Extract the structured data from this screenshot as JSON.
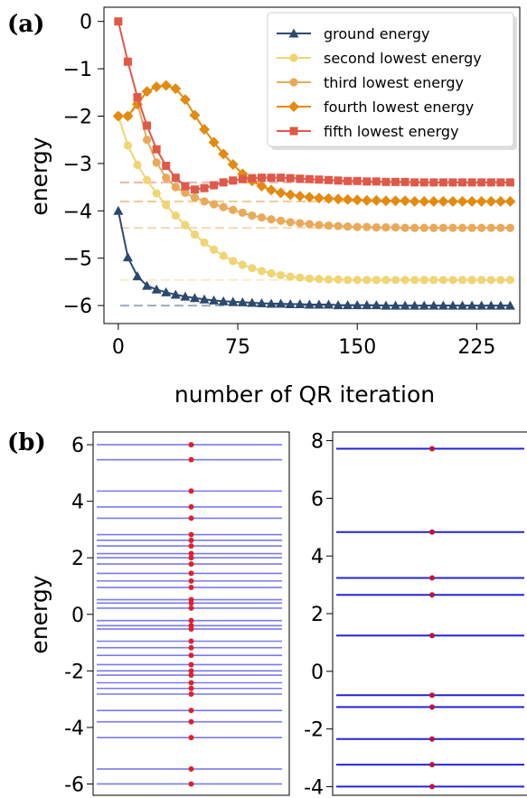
{
  "panel_labels": {
    "a": "(a)",
    "b": "(b)"
  },
  "chart_data": [
    {
      "type": "line",
      "panel": "(a)",
      "xlabel": "number of QR iteration",
      "ylabel": "energy",
      "xlim": [
        -9,
        252
      ],
      "ylim": [
        -6.38,
        0.3
      ],
      "xticks": [
        0,
        75,
        150,
        225
      ],
      "yticks": [
        0,
        -1,
        -2,
        -3,
        -4,
        -5,
        -6
      ],
      "legend_position": "top-right",
      "x": [
        0,
        6,
        12,
        18,
        24,
        30,
        36,
        42,
        48,
        54,
        60,
        66,
        72,
        78,
        84,
        90,
        96,
        102,
        108,
        114,
        120,
        126,
        132,
        138,
        144,
        150,
        156,
        162,
        168,
        174,
        180,
        186,
        192,
        198,
        204,
        210,
        216,
        222,
        228,
        234,
        240,
        246
      ],
      "series": [
        {
          "name": "ground energy",
          "color": "#2c4a6e",
          "marker": "triangle",
          "reference": -6.0,
          "values": [
            -4.0,
            -4.98,
            -5.38,
            -5.58,
            -5.66,
            -5.72,
            -5.77,
            -5.81,
            -5.84,
            -5.87,
            -5.89,
            -5.91,
            -5.92,
            -5.93,
            -5.94,
            -5.95,
            -5.96,
            -5.96,
            -5.97,
            -5.97,
            -5.98,
            -5.98,
            -5.98,
            -5.99,
            -5.99,
            -5.99,
            -5.99,
            -5.99,
            -6.0,
            -6.0,
            -6.0,
            -6.0,
            -6.0,
            -6.0,
            -6.0,
            -6.0,
            -6.0,
            -6.0,
            -6.0,
            -6.0,
            -6.0,
            -6.0
          ]
        },
        {
          "name": "second lowest energy",
          "color": "#efd574",
          "marker": "circle",
          "reference": -5.46,
          "values": [
            -2.0,
            -2.62,
            -3.03,
            -3.35,
            -3.63,
            -3.88,
            -4.1,
            -4.3,
            -4.5,
            -4.67,
            -4.82,
            -4.95,
            -5.06,
            -5.14,
            -5.21,
            -5.27,
            -5.32,
            -5.36,
            -5.39,
            -5.41,
            -5.43,
            -5.44,
            -5.45,
            -5.45,
            -5.46,
            -5.46,
            -5.46,
            -5.46,
            -5.46,
            -5.46,
            -5.46,
            -5.46,
            -5.46,
            -5.46,
            -5.46,
            -5.46,
            -5.46,
            -5.46,
            -5.46,
            -5.46,
            -5.46,
            -5.46
          ]
        },
        {
          "name": "third lowest energy",
          "color": "#e8aa5a",
          "marker": "circle",
          "reference": -4.36,
          "values": [
            -2.0,
            -2.0,
            -1.72,
            -2.5,
            -2.98,
            -3.3,
            -3.5,
            -3.62,
            -3.72,
            -3.8,
            -3.86,
            -3.92,
            -3.98,
            -4.04,
            -4.1,
            -4.14,
            -4.18,
            -4.21,
            -4.24,
            -4.26,
            -4.28,
            -4.3,
            -4.31,
            -4.32,
            -4.33,
            -4.34,
            -4.34,
            -4.35,
            -4.35,
            -4.35,
            -4.36,
            -4.36,
            -4.36,
            -4.36,
            -4.36,
            -4.36,
            -4.36,
            -4.36,
            -4.36,
            -4.36,
            -4.36,
            -4.36
          ]
        },
        {
          "name": "fourth lowest energy",
          "color": "#e38a12",
          "marker": "diamond",
          "reference": -3.8,
          "values": [
            -2.0,
            -2.0,
            -1.75,
            -1.48,
            -1.38,
            -1.35,
            -1.42,
            -1.65,
            -1.98,
            -2.28,
            -2.55,
            -2.8,
            -3.02,
            -3.22,
            -3.37,
            -3.48,
            -3.56,
            -3.62,
            -3.66,
            -3.69,
            -3.71,
            -3.73,
            -3.74,
            -3.75,
            -3.76,
            -3.77,
            -3.78,
            -3.78,
            -3.79,
            -3.79,
            -3.79,
            -3.8,
            -3.8,
            -3.8,
            -3.8,
            -3.8,
            -3.8,
            -3.8,
            -3.8,
            -3.8,
            -3.8,
            -3.8
          ]
        },
        {
          "name": "fifth lowest energy",
          "color": "#df5949",
          "marker": "square",
          "reference": -3.4,
          "values": [
            0.0,
            -0.85,
            -1.6,
            -2.2,
            -2.7,
            -3.05,
            -3.3,
            -3.48,
            -3.55,
            -3.52,
            -3.46,
            -3.4,
            -3.36,
            -3.33,
            -3.31,
            -3.3,
            -3.3,
            -3.3,
            -3.31,
            -3.32,
            -3.33,
            -3.34,
            -3.35,
            -3.36,
            -3.37,
            -3.37,
            -3.38,
            -3.38,
            -3.39,
            -3.39,
            -3.39,
            -3.4,
            -3.4,
            -3.4,
            -3.4,
            -3.4,
            -3.4,
            -3.4,
            -3.4,
            -3.4,
            -3.4,
            -3.4
          ]
        }
      ]
    },
    {
      "type": "scatter",
      "panel": "(b) left",
      "ylabel": "energy",
      "ylim": [
        -6.4,
        6.45
      ],
      "yticks": [
        6,
        4,
        2,
        0,
        -2,
        -4,
        -6
      ],
      "ytick_labels": [
        "6",
        "4",
        "2",
        "0",
        "-2",
        "-4",
        "-6"
      ],
      "line_color": "#7a7aec",
      "dot_color": "#e0202c",
      "levels": [
        6.0,
        5.47,
        4.36,
        3.8,
        3.4,
        2.82,
        2.62,
        2.42,
        2.15,
        2.0,
        1.78,
        1.45,
        1.18,
        0.95,
        0.52,
        0.4,
        0.22,
        -0.22,
        -0.4,
        -0.52,
        -0.95,
        -1.18,
        -1.45,
        -1.78,
        -2.0,
        -2.15,
        -2.42,
        -2.62,
        -2.82,
        -3.4,
        -3.8,
        -4.36,
        -5.47,
        -6.0
      ]
    },
    {
      "type": "scatter",
      "panel": "(b) right",
      "ylim": [
        -4.3,
        8.3
      ],
      "yticks": [
        8,
        6,
        4,
        2,
        0,
        -2,
        -4
      ],
      "ytick_labels": [
        "8",
        "6",
        "4",
        "2",
        "0",
        "-2",
        "-4"
      ],
      "line_color": "#2323d8",
      "dot_color": "#c0143c",
      "levels": [
        7.72,
        4.83,
        3.24,
        2.65,
        1.24,
        -0.83,
        -1.24,
        -2.35,
        -3.24,
        -4.0
      ]
    }
  ]
}
